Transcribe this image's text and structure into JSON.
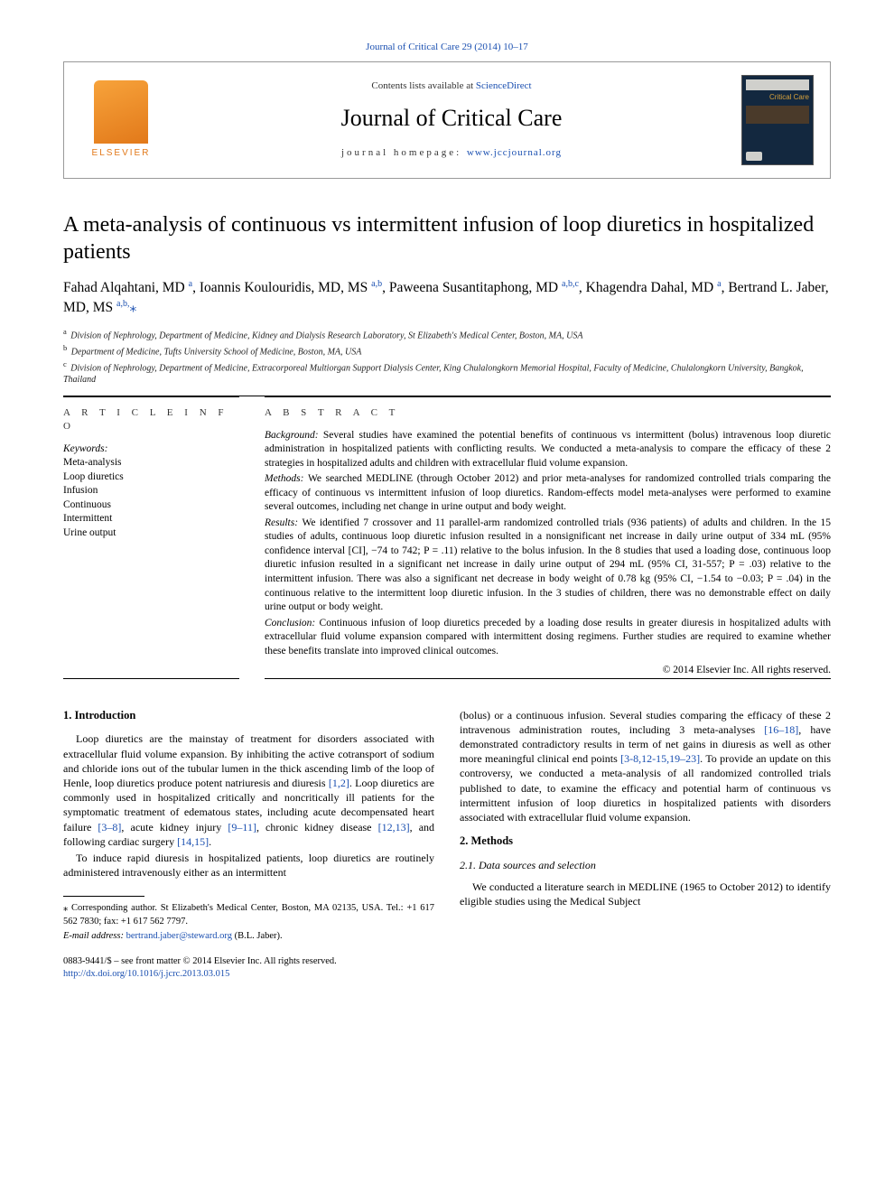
{
  "top_citation": "Journal of Critical Care 29 (2014) 10–17",
  "header": {
    "publisher": "ELSEVIER",
    "contents_prefix": "Contents lists available at ",
    "contents_link": "ScienceDirect",
    "journal_name": "Journal of Critical Care",
    "homepage_prefix": "journal homepage: ",
    "homepage_link": "www.jccjournal.org",
    "cover_title": "Critical Care"
  },
  "title": "A meta-analysis of continuous vs intermittent infusion of loop diuretics in hospitalized patients",
  "authors_html": "Fahad Alqahtani, MD <sup>a</sup>, Ioannis Koulouridis, MD, MS <sup>a,b</sup>, Paweena Susantitaphong, MD <sup>a,b,c</sup>, Khagendra Dahal, MD <sup>a</sup>, Bertrand L. Jaber, MD, MS <sup>a,b,</sup><span class='star'>⁎</span>",
  "affiliations": {
    "a": "Division of Nephrology, Department of Medicine, Kidney and Dialysis Research Laboratory, St Elizabeth's Medical Center, Boston, MA, USA",
    "b": "Department of Medicine, Tufts University School of Medicine, Boston, MA, USA",
    "c": "Division of Nephrology, Department of Medicine, Extracorporeal Multiorgan Support Dialysis Center, King Chulalongkorn Memorial Hospital, Faculty of Medicine, Chulalongkorn University, Bangkok, Thailand"
  },
  "article_info_head": "A R T I C L E   I N F O",
  "abstract_head": "A B S T R A C T",
  "keywords_label": "Keywords:",
  "keywords": [
    "Meta-analysis",
    "Loop diuretics",
    "Infusion",
    "Continuous",
    "Intermittent",
    "Urine output"
  ],
  "abstract": {
    "background": "Several studies have examined the potential benefits of continuous vs intermittent (bolus) intravenous loop diuretic administration in hospitalized patients with conflicting results. We conducted a meta-analysis to compare the efficacy of these 2 strategies in hospitalized adults and children with extracellular fluid volume expansion.",
    "methods": "We searched MEDLINE (through October 2012) and prior meta-analyses for randomized controlled trials comparing the efficacy of continuous vs intermittent infusion of loop diuretics. Random-effects model meta-analyses were performed to examine several outcomes, including net change in urine output and body weight.",
    "results": "We identified 7 crossover and 11 parallel-arm randomized controlled trials (936 patients) of adults and children. In the 15 studies of adults, continuous loop diuretic infusion resulted in a nonsignificant net increase in daily urine output of 334 mL (95% confidence interval [CI], −74 to 742; P = .11) relative to the bolus infusion. In the 8 studies that used a loading dose, continuous loop diuretic infusion resulted in a significant net increase in daily urine output of 294 mL (95% CI, 31-557; P = .03) relative to the intermittent infusion. There was also a significant net decrease in body weight of 0.78 kg (95% CI, −1.54 to −0.03; P = .04) in the continuous relative to the intermittent loop diuretic infusion. In the 3 studies of children, there was no demonstrable effect on daily urine output or body weight.",
    "conclusion": "Continuous infusion of loop diuretics preceded by a loading dose results in greater diuresis in hospitalized adults with extracellular fluid volume expansion compared with intermittent dosing regimens. Further studies are required to examine whether these benefits translate into improved clinical outcomes."
  },
  "copyright_abs": "© 2014 Elsevier Inc. All rights reserved.",
  "sections": {
    "intro_head": "1. Introduction",
    "intro_p1_a": "Loop diuretics are the mainstay of treatment for disorders associated with extracellular fluid volume expansion. By inhibiting the active cotransport of sodium and chloride ions out of the tubular lumen in the thick ascending limb of the loop of Henle, loop diuretics produce potent natriuresis and diuresis ",
    "intro_ref1": "[1,2]",
    "intro_p1_b": ". Loop diuretics are commonly used in hospitalized critically and noncritically ill patients for the symptomatic treatment of edematous states, including acute decompensated heart failure ",
    "intro_ref2": "[3–8]",
    "intro_p1_c": ", acute kidney injury ",
    "intro_ref3": "[9–11]",
    "intro_p1_d": ", chronic kidney disease ",
    "intro_ref4": "[12,13]",
    "intro_p1_e": ", and following cardiac surgery ",
    "intro_ref5": "[14,15]",
    "intro_p1_f": ".",
    "intro_p2": "To induce rapid diuresis in hospitalized patients, loop diuretics are routinely administered intravenously either as an intermittent",
    "col2_p1_a": "(bolus) or a continuous infusion. Several studies comparing the efficacy of these 2 intravenous administration routes, including 3 meta-analyses ",
    "col2_ref1": "[16–18]",
    "col2_p1_b": ", have demonstrated contradictory results in term of net gains in diuresis as well as other more meaningful clinical end points ",
    "col2_ref2": "[3-8,12-15,19–23]",
    "col2_p1_c": ". To provide an update on this controversy, we conducted a meta-analysis of all randomized controlled trials published to date, to examine the efficacy and potential harm of continuous vs intermittent infusion of loop diuretics in hospitalized patients with disorders associated with extracellular fluid volume expansion.",
    "methods_head": "2. Methods",
    "methods_sub": "2.1. Data sources and selection",
    "methods_p1": "We conducted a literature search in MEDLINE (1965 to October 2012) to identify eligible studies using the Medical Subject"
  },
  "footnotes": {
    "corr": "⁎ Corresponding author. St Elizabeth's Medical Center, Boston, MA 02135, USA. Tel.: +1 617 562 7830; fax: +1 617 562 7797.",
    "email_label": "E-mail address: ",
    "email": "bertrand.jaber@steward.org",
    "email_suffix": " (B.L. Jaber)."
  },
  "copyright_footer": {
    "line1": "0883-9441/$ – see front matter © 2014 Elsevier Inc. All rights reserved.",
    "doi": "http://dx.doi.org/10.1016/j.jcrc.2013.03.015"
  },
  "colors": {
    "link": "#1a4fb0",
    "elsevier": "#e2791a",
    "cover_bg": "#13283f",
    "cover_gold": "#d7a13b"
  },
  "fonts": {
    "title_size": 24,
    "journal_name_size": 26,
    "authors_size": 15.5,
    "body_size": 12,
    "abstract_size": 11.5,
    "affil_size": 10,
    "footnote_size": 10.5
  }
}
